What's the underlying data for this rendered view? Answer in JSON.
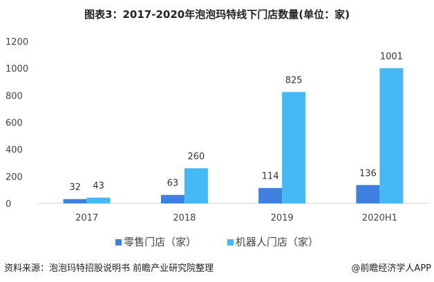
{
  "title": "图表3：2017-2020年泡泡玛特线下门店数量(单位：家)",
  "source": "资料来源：泡泡玛特招股说明书 前瞻产业研究院整理",
  "brand": "@前瞻经济学人APP",
  "chart_data": {
    "type": "bar",
    "title": "图表3：2017-2020年泡泡玛特线下门店数量(单位：家)",
    "categories": [
      "2017",
      "2018",
      "2019",
      "2020H1"
    ],
    "series": [
      {
        "name": "零售门店（家）",
        "values": [
          32,
          63,
          114,
          136
        ],
        "color": "#3f7fe0"
      },
      {
        "name": "机器人门店（家）",
        "values": [
          43,
          260,
          825,
          1001
        ],
        "color": "#45b9f5"
      }
    ],
    "yticks": [
      0,
      200,
      400,
      600,
      800,
      1000,
      1200
    ],
    "ylim": [
      0,
      1200
    ],
    "grid": false,
    "legend": "bottom",
    "xlabel": "",
    "ylabel": ""
  }
}
